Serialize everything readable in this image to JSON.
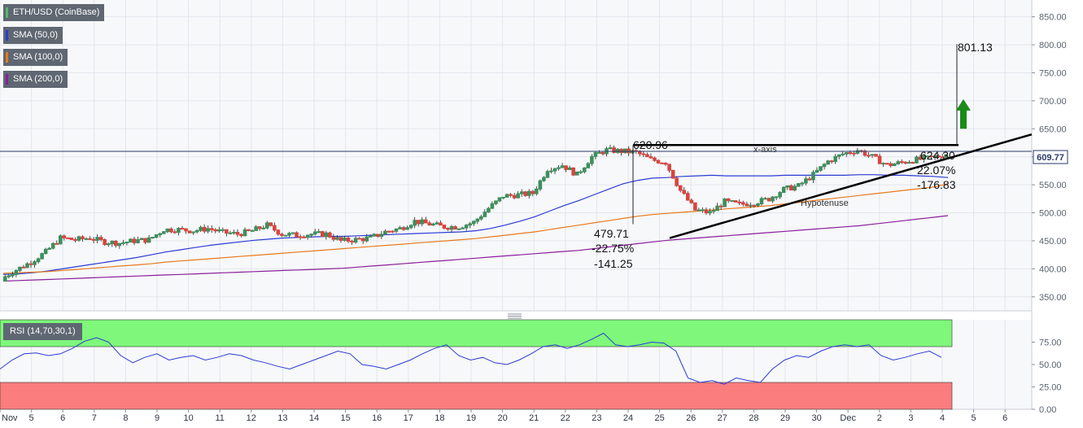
{
  "chart_data": {
    "type": "candlestick",
    "instrument": "ETH/USD (CoinBase)",
    "indicators": [
      {
        "name": "SMA (50,0)",
        "color": "#2b3bd4"
      },
      {
        "name": "SMA (100,0)",
        "color": "#e67a1e"
      },
      {
        "name": "SMA (200,0)",
        "color": "#8a1f9a"
      }
    ],
    "x_ticks": [
      "Nov",
      "5",
      "6",
      "7",
      "8",
      "9",
      "10",
      "11",
      "12",
      "13",
      "14",
      "15",
      "16",
      "17",
      "18",
      "19",
      "20",
      "21",
      "22",
      "23",
      "24",
      "25",
      "26",
      "27",
      "28",
      "29",
      "30",
      "Dec",
      "2",
      "3",
      "4",
      "5",
      "6"
    ],
    "price_axis": {
      "ylim": [
        325,
        880
      ],
      "ticks": [
        "850.00",
        "800.00",
        "750.00",
        "700.00",
        "650.00",
        "600.00",
        "550.00",
        "500.00",
        "450.00",
        "400.00",
        "350.00"
      ]
    },
    "last_price": "609.77",
    "close_series": [
      382,
      398,
      412,
      430,
      455,
      452,
      455,
      448,
      446,
      450,
      452,
      470,
      470,
      468,
      472,
      465,
      462,
      468,
      478,
      462,
      460,
      462,
      462,
      450,
      452,
      455,
      466,
      472,
      485,
      480,
      475,
      475,
      483,
      508,
      530,
      532,
      535,
      578,
      585,
      568,
      600,
      612,
      610,
      608,
      595,
      590,
      540,
      505,
      500,
      520,
      515,
      518,
      525,
      542,
      548,
      568,
      592,
      605,
      612,
      600,
      585,
      590,
      595,
      598,
      605
    ],
    "sma50": [
      390,
      391,
      393,
      396,
      400,
      404,
      408,
      412,
      416,
      420,
      425,
      430,
      434,
      438,
      442,
      445,
      448,
      451,
      453,
      455,
      456,
      457,
      458,
      458,
      459,
      460,
      461,
      462,
      463,
      464,
      465,
      466,
      468,
      472,
      478,
      485,
      493,
      503,
      513,
      522,
      532,
      542,
      552,
      558,
      562,
      563,
      565,
      566,
      567,
      566,
      566,
      566,
      566,
      567,
      567,
      567,
      567,
      567,
      568,
      568,
      567,
      567,
      566,
      565,
      563
    ],
    "sma100": [
      392,
      393,
      394,
      395,
      397,
      399,
      401,
      403,
      405,
      407,
      409,
      412,
      414,
      416,
      418,
      420,
      422,
      424,
      426,
      428,
      430,
      432,
      434,
      436,
      438,
      440,
      442,
      444,
      446,
      448,
      450,
      452,
      454,
      457,
      460,
      463,
      466,
      470,
      474,
      478,
      482,
      486,
      490,
      494,
      497,
      499,
      501,
      503,
      505,
      507,
      509,
      511,
      513,
      516,
      519,
      522,
      525,
      528,
      531,
      534,
      537,
      540,
      543,
      546,
      552
    ],
    "sma200": [
      378,
      379,
      380,
      381,
      382,
      383,
      384,
      385,
      386,
      387,
      388,
      389,
      390,
      391,
      392,
      393,
      394,
      395,
      396,
      397,
      398,
      399,
      400,
      401,
      403,
      405,
      407,
      409,
      411,
      413,
      415,
      417,
      419,
      421,
      423,
      425,
      427,
      429,
      431,
      433,
      436,
      439,
      442,
      445,
      448,
      451,
      453,
      455,
      457,
      459,
      461,
      463,
      465,
      467,
      469,
      471,
      473,
      475,
      477,
      480,
      483,
      486,
      489,
      492,
      495
    ],
    "annotations": {
      "top_label": "620.96",
      "bottom_label_1": "479.71",
      "bottom_label_2": "-22.75%",
      "bottom_label_3": "-141.25",
      "right_label_1": "624.30",
      "right_label_2": "22.07%",
      "right_label_3": "-176.83",
      "target_label": "801.13",
      "x_axis_label": "x-axis",
      "hypotenuse_label": "Hypotenuse"
    },
    "rsi": {
      "name": "RSI (14,70,30,1)",
      "ylim": [
        0,
        100
      ],
      "ticks": [
        "75.00",
        "50.00",
        "25.00",
        "0.00"
      ],
      "overbought": 70,
      "oversold": 30,
      "values": [
        45,
        55,
        62,
        63,
        60,
        62,
        68,
        76,
        80,
        75,
        60,
        52,
        58,
        62,
        55,
        58,
        60,
        55,
        58,
        62,
        60,
        55,
        52,
        48,
        45,
        50,
        55,
        60,
        65,
        62,
        50,
        48,
        45,
        50,
        55,
        62,
        68,
        72,
        60,
        55,
        58,
        52,
        50,
        55,
        62,
        70,
        72,
        68,
        72,
        78,
        85,
        72,
        70,
        72,
        75,
        74,
        65,
        35,
        30,
        32,
        28,
        35,
        32,
        30,
        45,
        55,
        60,
        58,
        65,
        70,
        72,
        70,
        72,
        60,
        55,
        58,
        62,
        65,
        58
      ]
    }
  }
}
